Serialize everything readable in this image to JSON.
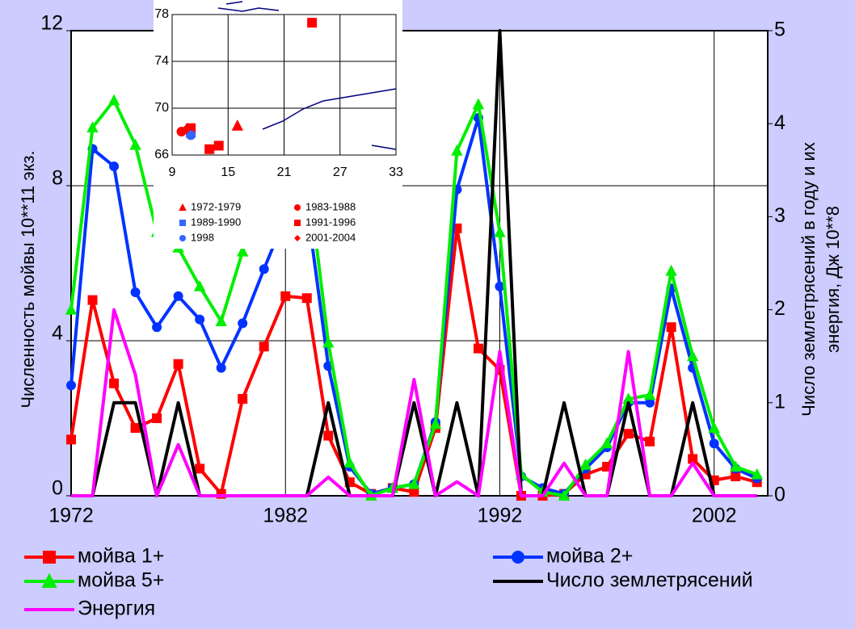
{
  "chart_data": [
    {
      "type": "line",
      "ylabel": "Численность мойвы 10**11 экз.",
      "y2label": [
        "Число землетрясений в году и их",
        "энергия, Дж 10**8"
      ],
      "x": [
        1972,
        1973,
        1974,
        1975,
        1976,
        1977,
        1978,
        1979,
        1980,
        1981,
        1982,
        1983,
        1984,
        1985,
        1986,
        1987,
        1988,
        1989,
        1990,
        1991,
        1992,
        1993,
        1994,
        1995,
        1996,
        1997,
        1998,
        1999,
        2000,
        2001,
        2002,
        2003,
        2004
      ],
      "xlim": [
        1972,
        2004.5
      ],
      "xticks": [
        1972,
        1982,
        1992,
        2002
      ],
      "ylim": [
        0,
        12
      ],
      "yticks": [
        0,
        4,
        8,
        12
      ],
      "y2lim": [
        0,
        5
      ],
      "y2ticks": [
        0,
        1,
        2,
        3,
        4,
        5
      ],
      "grid": true,
      "series": [
        {
          "name": "мойва 1+",
          "color": "#ff0000",
          "marker": "square",
          "values": [
            1.45,
            5.05,
            2.9,
            1.75,
            2.0,
            3.4,
            0.7,
            0.05,
            2.5,
            3.85,
            5.15,
            5.1,
            1.55,
            0.35,
            0.05,
            0.2,
            0.1,
            1.75,
            6.9,
            3.8,
            3.25,
            0,
            0,
            0.05,
            0.55,
            0.75,
            1.6,
            1.4,
            4.35,
            0.95,
            0.4,
            0.5,
            0.35
          ]
        },
        {
          "name": "мойва 2+",
          "color": "#0033ff",
          "marker": "circle",
          "values": [
            2.85,
            8.95,
            8.5,
            5.25,
            4.35,
            5.15,
            4.55,
            3.3,
            4.45,
            5.85,
            7.2,
            7.5,
            3.35,
            0.75,
            0.05,
            0.2,
            0.3,
            1.9,
            7.9,
            9.75,
            5.4,
            0.5,
            0.2,
            0.05,
            0.7,
            1.25,
            2.4,
            2.4,
            5.35,
            3.3,
            1.35,
            0.7,
            0.45
          ]
        },
        {
          "name": "мойва 5+",
          "color": "#00ee00",
          "marker": "triangle",
          "values": [
            4.8,
            9.5,
            10.2,
            9.05,
            6.8,
            6.4,
            5.4,
            4.5,
            6.3,
            8.5,
            9.0,
            8.5,
            3.95,
            0.85,
            0,
            0.2,
            0.3,
            1.85,
            8.9,
            10.1,
            6.8,
            0.55,
            0.1,
            0,
            0.8,
            1.35,
            2.5,
            2.6,
            5.8,
            3.6,
            1.75,
            0.75,
            0.55
          ]
        },
        {
          "name": "Число землетрясений",
          "color": "#000000",
          "marker": "none",
          "axis": "y2",
          "values": [
            0,
            0,
            1,
            1,
            0,
            1,
            0,
            0,
            0,
            0,
            0,
            0,
            1,
            0,
            0,
            0,
            1,
            0,
            1,
            0,
            5,
            0,
            0,
            1,
            0,
            0,
            1,
            0,
            0,
            1,
            0,
            0,
            0
          ]
        },
        {
          "name": "Энергия",
          "color": "#ff00ff",
          "marker": "none",
          "axis": "y2",
          "values": [
            0,
            0,
            2.0,
            1.3,
            0,
            0.55,
            0,
            0,
            0,
            0,
            0,
            0,
            0.2,
            0,
            0,
            0,
            1.25,
            0,
            0.15,
            0,
            1.55,
            0,
            0,
            0.35,
            0,
            0,
            1.55,
            0,
            0,
            0.35,
            0,
            0,
            0
          ]
        }
      ]
    },
    {
      "type": "scatter",
      "xlim": [
        9,
        33
      ],
      "xticks": [
        9,
        15,
        21,
        27,
        33
      ],
      "ylim": [
        66,
        78
      ],
      "yticks": [
        66,
        70,
        74,
        78
      ],
      "grid": true,
      "series": [
        {
          "name": "1972-1979",
          "color": "#ff0000",
          "marker": "triangle",
          "x": [
            16
          ],
          "y": [
            68.5
          ]
        },
        {
          "name": "1983-1988",
          "color": "#ff0000",
          "marker": "circle",
          "x": [
            10
          ],
          "y": [
            68
          ]
        },
        {
          "name": "1989-1990",
          "color": "#3366ff",
          "marker": "square",
          "x": [
            11
          ],
          "y": [
            67.9
          ]
        },
        {
          "name": "1991-1996",
          "color": "#ff0000",
          "marker": "square",
          "x": [
            11,
            13,
            14,
            24
          ],
          "y": [
            68.3,
            66.5,
            66.8,
            77.3
          ]
        },
        {
          "name": "1998",
          "color": "#3366ff",
          "marker": "circle",
          "x": [
            11
          ],
          "y": [
            67.7
          ]
        },
        {
          "name": "2001-2004",
          "color": "#ff0000",
          "marker": "diamond",
          "x": [
            10.5
          ],
          "y": [
            68.2
          ]
        }
      ]
    }
  ]
}
